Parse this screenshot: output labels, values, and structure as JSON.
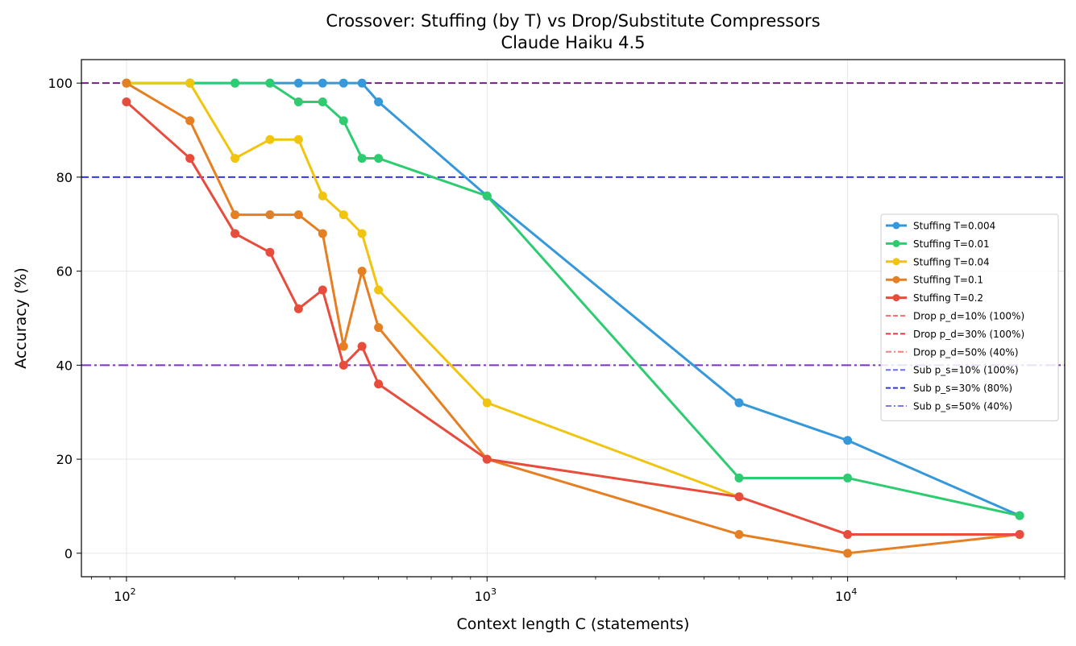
{
  "chart_data": {
    "type": "line",
    "title": "Crossover: Stuffing (by T) vs Drop/Substitute Compressors",
    "subtitle": "Claude Haiku 4.5",
    "xlabel": "Context length C (statements)",
    "ylabel": "Accuracy (%)",
    "x_scale": "log",
    "xlim": [
      75,
      40000
    ],
    "ylim": [
      -5,
      105
    ],
    "grid": true,
    "legend_position": "center-right",
    "x_ticks": [
      {
        "base": "10",
        "exp": "2",
        "value": 100
      },
      {
        "base": "10",
        "exp": "3",
        "value": 1000
      },
      {
        "base": "10",
        "exp": "4",
        "value": 10000
      }
    ],
    "y_ticks": [
      "0",
      "20",
      "40",
      "60",
      "80",
      "100"
    ],
    "series": [
      {
        "name": "Stuffing T=0.004",
        "color": "#3498db",
        "x": [
          100,
          150,
          200,
          250,
          300,
          350,
          400,
          450,
          500,
          1000,
          5000,
          10000,
          30000
        ],
        "y": [
          100,
          100,
          100,
          100,
          100,
          100,
          100,
          100,
          96,
          76,
          32,
          24,
          8
        ]
      },
      {
        "name": "Stuffing T=0.01",
        "color": "#2ecc71",
        "x": [
          100,
          150,
          200,
          250,
          300,
          350,
          400,
          450,
          500,
          1000,
          5000,
          10000,
          30000
        ],
        "y": [
          100,
          100,
          100,
          100,
          96,
          96,
          92,
          84,
          84,
          76,
          16,
          16,
          8
        ]
      },
      {
        "name": "Stuffing T=0.04",
        "color": "#f1c40f",
        "x": [
          100,
          150,
          200,
          250,
          300,
          350,
          400,
          450,
          500,
          1000,
          5000
        ],
        "y": [
          100,
          100,
          84,
          88,
          88,
          76,
          72,
          68,
          56,
          32,
          12
        ]
      },
      {
        "name": "Stuffing T=0.1",
        "color": "#e67e22",
        "x": [
          100,
          150,
          200,
          250,
          300,
          350,
          400,
          450,
          500,
          1000,
          5000,
          10000,
          30000
        ],
        "y": [
          100,
          92,
          72,
          72,
          72,
          68,
          44,
          60,
          48,
          20,
          4,
          0,
          4
        ]
      },
      {
        "name": "Stuffing T=0.2",
        "color": "#e74c3c",
        "x": [
          100,
          150,
          200,
          250,
          300,
          350,
          400,
          450,
          500,
          1000,
          5000,
          10000,
          30000
        ],
        "y": [
          96,
          84,
          68,
          64,
          52,
          56,
          40,
          44,
          36,
          20,
          12,
          4,
          4
        ]
      }
    ],
    "reference_lines": [
      {
        "name": "Drop p_d=10% (100%)",
        "value": 100,
        "color": "#ff7070",
        "dash": "dashed"
      },
      {
        "name": "Drop p_d=30% (100%)",
        "value": 100,
        "color": "#e63939",
        "dash": "dashed"
      },
      {
        "name": "Drop p_d=50% (40%)",
        "value": 40,
        "color": "#f08080",
        "dash": "dashdot"
      },
      {
        "name": "Sub p_s=10% (100%)",
        "value": 100,
        "color": "#6b6bff",
        "dash": "dashed"
      },
      {
        "name": "Sub p_s=30% (80%)",
        "value": 80,
        "color": "#3535e6",
        "dash": "dashed"
      },
      {
        "name": "Sub p_s=50% (40%)",
        "value": 40,
        "color": "#7b7bf0",
        "dash": "dashdot"
      }
    ],
    "rendered_overlap_colors": {
      "line_100": "#7a1a8c",
      "line_80": "#3535e6",
      "line_40": "#7a33c0"
    }
  }
}
